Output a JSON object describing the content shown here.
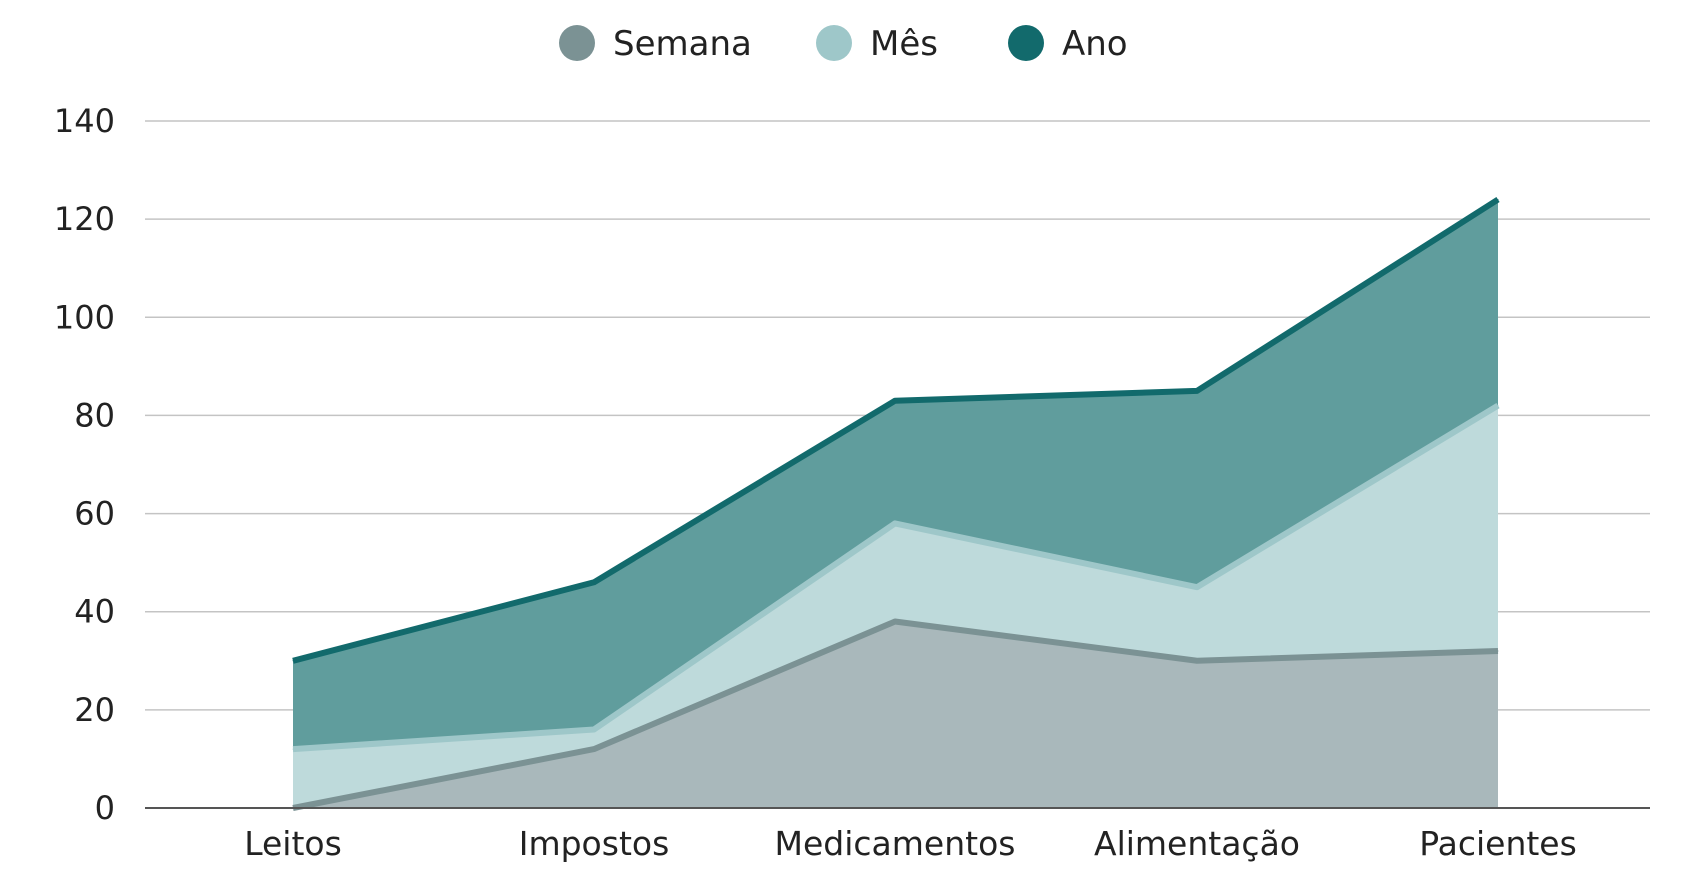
{
  "chart_data": {
    "type": "area",
    "stacked": false,
    "categories": [
      "Leitos",
      "Impostos",
      "Medicamentos",
      "Alimentação",
      "Pacientes"
    ],
    "series": [
      {
        "name": "Semana",
        "values": [
          0,
          12,
          38,
          30,
          32
        ],
        "color": "#7b9294",
        "fill": "#a9b8bb"
      },
      {
        "name": "Mês",
        "values": [
          12,
          16,
          58,
          45,
          82
        ],
        "color": "#9ec7c9",
        "fill": "#bedadb"
      },
      {
        "name": "Ano",
        "values": [
          30,
          46,
          83,
          85,
          124
        ],
        "color": "#126a6c",
        "fill": "#609d9d"
      }
    ],
    "ylim": [
      0,
      140
    ],
    "yticks": [
      0,
      20,
      40,
      60,
      80,
      100,
      120,
      140
    ],
    "grid": true,
    "legend": "top-center",
    "title": "",
    "xlabel": "",
    "ylabel": ""
  }
}
